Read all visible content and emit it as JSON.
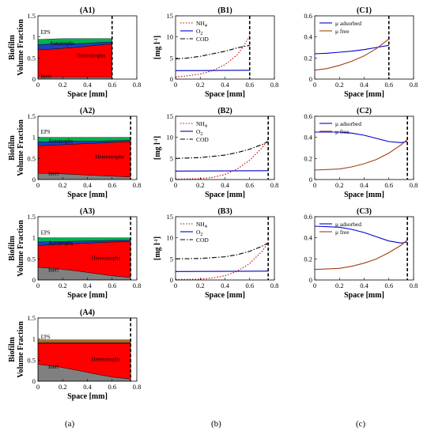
{
  "column_labels": [
    "(a)",
    "(b)",
    "(c)"
  ],
  "chart_data": [
    {
      "id": "A1",
      "type": "area",
      "title": "(A1)",
      "xlabel": "Space [mm]",
      "ylabel": [
        "Biofilm",
        "Volume Fraction"
      ],
      "xlim": [
        0,
        0.8
      ],
      "ylim": [
        0,
        1.5
      ],
      "xticks": [
        "0",
        "0.2",
        "0.4",
        "0.6",
        "0.8"
      ],
      "yticks": [
        "0",
        "0.5",
        "1",
        "1.5"
      ],
      "xticks_v": [
        0,
        0.2,
        0.4,
        0.6,
        0.8
      ],
      "yticks_v": [
        0,
        0.5,
        1,
        1.5
      ],
      "boundary": 0.6,
      "x": [
        0,
        0.1,
        0.2,
        0.3,
        0.4,
        0.5,
        0.6
      ],
      "layers": [
        {
          "name": "Inert",
          "color": "#808080",
          "values": [
            0.05,
            0.05,
            0.05,
            0.05,
            0.05,
            0.05,
            0.05
          ]
        },
        {
          "name": "Heterotrophs",
          "color": "#ff0000",
          "values": [
            0.65,
            0.66,
            0.68,
            0.7,
            0.73,
            0.76,
            0.78
          ]
        },
        {
          "name": "Autotrophs",
          "color": "#1f3fbf",
          "values": [
            0.12,
            0.12,
            0.11,
            0.09,
            0.07,
            0.06,
            0.05
          ]
        },
        {
          "name": "EPS",
          "color": "#00b050",
          "values": [
            0.12,
            0.12,
            0.12,
            0.12,
            0.11,
            0.09,
            0.08
          ]
        }
      ],
      "labels": [
        {
          "text": "EPS",
          "x": 0.01,
          "y": 1.07
        },
        {
          "text": "Autotrophs",
          "x": 0.08,
          "y": 0.81
        },
        {
          "text": "Heterotrophs",
          "x": 0.3,
          "y": 0.52
        },
        {
          "text": "Inert",
          "x": 0.01,
          "y": 0.03
        }
      ]
    },
    {
      "id": "B1",
      "type": "line",
      "title": "(B1)",
      "xlabel": "Space [mm]",
      "ylabel": "[mg l-1]",
      "xlim": [
        0,
        0.8
      ],
      "ylim": [
        0,
        15
      ],
      "xticks": [
        "0",
        "0.2",
        "0.4",
        "0.6",
        "0.8"
      ],
      "yticks": [
        "0",
        "5",
        "10",
        "15"
      ],
      "xticks_v": [
        0,
        0.2,
        0.4,
        0.6,
        0.8
      ],
      "yticks_v": [
        0,
        5,
        10,
        15
      ],
      "boundary": 0.6,
      "legend": [
        "NH4",
        "O2",
        "COD"
      ],
      "series": [
        {
          "name": "NH4",
          "color": "#c00000",
          "dash": "1.5,2",
          "x": [
            0,
            0.1,
            0.2,
            0.3,
            0.4,
            0.5,
            0.55,
            0.6
          ],
          "y": [
            0.5,
            0.8,
            1.2,
            2.0,
            3.4,
            5.8,
            7.8,
            10.2
          ]
        },
        {
          "name": "O2",
          "color": "#0000cc",
          "dash": "",
          "x": [
            0,
            0.6
          ],
          "y": [
            2.0,
            2.1
          ]
        },
        {
          "name": "COD",
          "color": "#000000",
          "dash": "6,2,1.5,2",
          "x": [
            0,
            0.1,
            0.2,
            0.3,
            0.4,
            0.5,
            0.6
          ],
          "y": [
            4.8,
            5.0,
            5.4,
            6.0,
            6.6,
            7.4,
            8.0
          ]
        }
      ]
    },
    {
      "id": "C1",
      "type": "line",
      "title": "(C1)",
      "xlabel": "Space [mm]",
      "ylabel": "",
      "xlim": [
        0,
        0.8
      ],
      "ylim": [
        0,
        0.6
      ],
      "xticks": [
        "0",
        "0.2",
        "0.4",
        "0.6",
        "0.8"
      ],
      "yticks": [
        "0",
        "0.2",
        "0.4",
        "0.6"
      ],
      "xticks_v": [
        0,
        0.2,
        0.4,
        0.6,
        0.8
      ],
      "yticks_v": [
        0,
        0.2,
        0.4,
        0.6
      ],
      "boundary": 0.6,
      "legend": [
        "μ adsorbed",
        "μ free"
      ],
      "series": [
        {
          "name": "μ adsorbed",
          "color": "#0000cc",
          "dash": "",
          "x": [
            0,
            0.1,
            0.2,
            0.3,
            0.4,
            0.5,
            0.6
          ],
          "y": [
            0.24,
            0.245,
            0.255,
            0.265,
            0.28,
            0.3,
            0.32
          ]
        },
        {
          "name": "μ free",
          "color": "#a0401a",
          "dash": "",
          "x": [
            0,
            0.1,
            0.2,
            0.3,
            0.4,
            0.5,
            0.6
          ],
          "y": [
            0.085,
            0.1,
            0.13,
            0.17,
            0.22,
            0.29,
            0.38
          ]
        }
      ]
    },
    {
      "id": "A2",
      "type": "area",
      "title": "(A2)",
      "xlabel": "Space [mm]",
      "ylabel": [
        "Biofilm",
        "Volume Fraction"
      ],
      "xlim": [
        0,
        0.8
      ],
      "ylim": [
        0,
        1.5
      ],
      "xticks": [
        "0",
        "0.2",
        "0.4",
        "0.6",
        "0.8"
      ],
      "yticks": [
        "0",
        "0.5",
        "1",
        "1.5"
      ],
      "xticks_v": [
        0,
        0.2,
        0.4,
        0.6,
        0.8
      ],
      "yticks_v": [
        0,
        0.5,
        1,
        1.5
      ],
      "boundary": 0.75,
      "x": [
        0,
        0.15,
        0.3,
        0.45,
        0.6,
        0.75
      ],
      "layers": [
        {
          "name": "Inert",
          "color": "#808080",
          "values": [
            0.15,
            0.14,
            0.12,
            0.1,
            0.08,
            0.06
          ]
        },
        {
          "name": "Heterotrophs",
          "color": "#ff0000",
          "values": [
            0.65,
            0.68,
            0.72,
            0.76,
            0.8,
            0.84
          ]
        },
        {
          "name": "Autotrophs",
          "color": "#1f3fbf",
          "values": [
            0.09,
            0.08,
            0.07,
            0.05,
            0.04,
            0.03
          ]
        },
        {
          "name": "EPS",
          "color": "#00b050",
          "values": [
            0.11,
            0.1,
            0.09,
            0.09,
            0.08,
            0.07
          ]
        }
      ],
      "labels": [
        {
          "text": "EPS",
          "x": 0.01,
          "y": 1.09
        },
        {
          "text": "Autotrophs",
          "x": 0.07,
          "y": 0.87
        },
        {
          "text": "Heterotrophs",
          "x": 0.45,
          "y": 0.5
        },
        {
          "text": "Inert",
          "x": 0.07,
          "y": 0.1
        }
      ]
    },
    {
      "id": "B2",
      "type": "line",
      "title": "(B2)",
      "xlabel": "Space [mm]",
      "ylabel": "[mg l-1]",
      "xlim": [
        0,
        0.8
      ],
      "ylim": [
        0,
        15
      ],
      "xticks": [
        "0",
        "0.2",
        "0.4",
        "0.6",
        "0.8"
      ],
      "yticks": [
        "0",
        "5",
        "10",
        "15"
      ],
      "xticks_v": [
        0,
        0.2,
        0.4,
        0.6,
        0.8
      ],
      "yticks_v": [
        0,
        5,
        10,
        15
      ],
      "boundary": 0.75,
      "legend": [
        "NH4",
        "O2",
        "COD"
      ],
      "series": [
        {
          "name": "NH4",
          "color": "#c00000",
          "dash": "1.5,2",
          "x": [
            0,
            0.2,
            0.3,
            0.4,
            0.5,
            0.6,
            0.7,
            0.75
          ],
          "y": [
            0.1,
            0.2,
            0.5,
            1.2,
            2.5,
            4.6,
            7.5,
            9.6
          ]
        },
        {
          "name": "O2",
          "color": "#0000cc",
          "dash": "",
          "x": [
            0,
            0.75
          ],
          "y": [
            2.0,
            2.1
          ]
        },
        {
          "name": "COD",
          "color": "#000000",
          "dash": "6,2,1.5,2",
          "x": [
            0,
            0.2,
            0.4,
            0.5,
            0.6,
            0.7,
            0.75
          ],
          "y": [
            5.0,
            5.2,
            5.8,
            6.4,
            7.2,
            8.3,
            9.0
          ]
        }
      ]
    },
    {
      "id": "C2",
      "type": "line",
      "title": "(C2)",
      "xlabel": "Space [mm]",
      "ylabel": "",
      "xlim": [
        0,
        0.8
      ],
      "ylim": [
        0,
        0.6
      ],
      "xticks": [
        "0",
        "0.2",
        "0.4",
        "0.6",
        "0.8"
      ],
      "yticks": [
        "0",
        "0.2",
        "0.4",
        "0.6"
      ],
      "xticks_v": [
        0,
        0.2,
        0.4,
        0.6,
        0.8
      ],
      "yticks_v": [
        0,
        0.2,
        0.4,
        0.6
      ],
      "boundary": 0.75,
      "legend": [
        "μ adsorbed",
        "μ free"
      ],
      "series": [
        {
          "name": "μ adsorbed",
          "color": "#0000cc",
          "dash": "",
          "x": [
            0,
            0.2,
            0.3,
            0.4,
            0.5,
            0.6,
            0.7,
            0.75
          ],
          "y": [
            0.45,
            0.45,
            0.44,
            0.42,
            0.39,
            0.36,
            0.35,
            0.36
          ]
        },
        {
          "name": "μ free",
          "color": "#a0401a",
          "dash": "",
          "x": [
            0,
            0.2,
            0.3,
            0.4,
            0.5,
            0.6,
            0.7,
            0.75
          ],
          "y": [
            0.09,
            0.1,
            0.12,
            0.15,
            0.19,
            0.25,
            0.33,
            0.38
          ]
        }
      ]
    },
    {
      "id": "A3",
      "type": "area",
      "title": "(A3)",
      "xlabel": "Space [mm]",
      "ylabel": [
        "Biofilm",
        "Volume Fraction"
      ],
      "xlim": [
        0,
        0.8
      ],
      "ylim": [
        0,
        1.5
      ],
      "xticks": [
        "0",
        "0.2",
        "0.4",
        "0.6",
        "0.8"
      ],
      "yticks": [
        "0",
        "0.5",
        "1",
        "1.5"
      ],
      "xticks_v": [
        0,
        0.2,
        0.4,
        0.6,
        0.8
      ],
      "yticks_v": [
        0,
        0.5,
        1,
        1.5
      ],
      "boundary": 0.75,
      "x": [
        0,
        0.15,
        0.3,
        0.45,
        0.6,
        0.75
      ],
      "layers": [
        {
          "name": "Inert",
          "color": "#808080",
          "values": [
            0.3,
            0.27,
            0.22,
            0.16,
            0.1,
            0.06
          ]
        },
        {
          "name": "Heterotrophs",
          "color": "#ff0000",
          "values": [
            0.52,
            0.57,
            0.64,
            0.72,
            0.8,
            0.85
          ]
        },
        {
          "name": "Autotrophs",
          "color": "#1f3fbf",
          "values": [
            0.08,
            0.07,
            0.06,
            0.05,
            0.04,
            0.03
          ]
        },
        {
          "name": "EPS",
          "color": "#00b050",
          "values": [
            0.1,
            0.09,
            0.08,
            0.07,
            0.06,
            0.06
          ]
        }
      ],
      "labels": [
        {
          "text": "EPS",
          "x": 0.01,
          "y": 1.08
        },
        {
          "text": "Autotrophs",
          "x": 0.07,
          "y": 0.83
        },
        {
          "text": "Heterotrophs",
          "x": 0.42,
          "y": 0.48
        },
        {
          "text": "Inert",
          "x": 0.07,
          "y": 0.2
        }
      ]
    },
    {
      "id": "B3",
      "type": "line",
      "title": "(B3)",
      "xlabel": "Space [mm]",
      "ylabel": "[mg l-1]",
      "xlim": [
        0,
        0.8
      ],
      "ylim": [
        0,
        15
      ],
      "xticks": [
        "0",
        "0.2",
        "0.4",
        "0.6",
        "0.8"
      ],
      "yticks": [
        "0",
        "5",
        "10",
        "15"
      ],
      "xticks_v": [
        0,
        0.2,
        0.4,
        0.6,
        0.8
      ],
      "yticks_v": [
        0,
        5,
        10,
        15
      ],
      "boundary": 0.75,
      "legend": [
        "NH4",
        "O2",
        "COD"
      ],
      "series": [
        {
          "name": "NH4",
          "color": "#c00000",
          "dash": "1.5,2",
          "x": [
            0,
            0.2,
            0.3,
            0.4,
            0.5,
            0.6,
            0.7,
            0.75
          ],
          "y": [
            0.1,
            0.2,
            0.5,
            1.0,
            2.1,
            3.9,
            6.8,
            8.8
          ]
        },
        {
          "name": "O2",
          "color": "#0000cc",
          "dash": "",
          "x": [
            0,
            0.75
          ],
          "y": [
            2.0,
            2.1
          ]
        },
        {
          "name": "COD",
          "color": "#000000",
          "dash": "6,2,1.5,2",
          "x": [
            0,
            0.2,
            0.4,
            0.5,
            0.6,
            0.7,
            0.75
          ],
          "y": [
            5.0,
            5.1,
            5.5,
            6.0,
            6.8,
            8.0,
            8.8
          ]
        }
      ]
    },
    {
      "id": "C3",
      "type": "line",
      "title": "(C3)",
      "xlabel": "Space [mm]",
      "ylabel": "",
      "xlim": [
        0,
        0.8
      ],
      "ylim": [
        0,
        0.6
      ],
      "xticks": [
        "0",
        "0.2",
        "0.4",
        "0.6",
        "0.8"
      ],
      "yticks": [
        "0",
        "0.2",
        "0.4",
        "0.6"
      ],
      "xticks_v": [
        0,
        0.2,
        0.4,
        0.6,
        0.8
      ],
      "yticks_v": [
        0,
        0.2,
        0.4,
        0.6
      ],
      "boundary": 0.75,
      "legend": [
        "μ adsorbed",
        "μ free"
      ],
      "series": [
        {
          "name": "μ adsorbed",
          "color": "#0000cc",
          "dash": "",
          "x": [
            0,
            0.2,
            0.3,
            0.4,
            0.5,
            0.6,
            0.7,
            0.75
          ],
          "y": [
            0.51,
            0.5,
            0.48,
            0.45,
            0.41,
            0.37,
            0.35,
            0.36
          ]
        },
        {
          "name": "μ free",
          "color": "#a0401a",
          "dash": "",
          "x": [
            0,
            0.2,
            0.3,
            0.4,
            0.5,
            0.6,
            0.7,
            0.75
          ],
          "y": [
            0.1,
            0.11,
            0.13,
            0.16,
            0.2,
            0.26,
            0.33,
            0.38
          ]
        }
      ]
    },
    {
      "id": "A4",
      "type": "area",
      "title": "(A4)",
      "xlabel": "Space [mm]",
      "ylabel": [
        "Biofilm",
        "Volume Fraction"
      ],
      "xlim": [
        0,
        0.8
      ],
      "ylim": [
        0,
        1.5
      ],
      "xticks": [
        "0",
        "0.2",
        "0.4",
        "0.6",
        "0.8"
      ],
      "yticks": [
        "0",
        "0.5",
        "1",
        "1.5"
      ],
      "xticks_v": [
        0,
        0.2,
        0.4,
        0.6,
        0.8
      ],
      "yticks_v": [
        0,
        0.5,
        1,
        1.5
      ],
      "boundary": 0.75,
      "x": [
        0,
        0.15,
        0.3,
        0.45,
        0.6,
        0.75
      ],
      "layers": [
        {
          "name": "Inert",
          "color": "#808080",
          "values": [
            0.4,
            0.35,
            0.27,
            0.18,
            0.1,
            0.05
          ]
        },
        {
          "name": "Heterotrophs",
          "color": "#ff0000",
          "values": [
            0.5,
            0.55,
            0.63,
            0.72,
            0.8,
            0.85
          ]
        },
        {
          "name": "Autotrophs",
          "color": "#1f3fbf",
          "values": [
            0.01,
            0.01,
            0.01,
            0.01,
            0.01,
            0.01
          ]
        },
        {
          "name": "EPS",
          "color": "#b5651d",
          "values": [
            0.07,
            0.07,
            0.07,
            0.07,
            0.07,
            0.07
          ]
        }
      ],
      "labels": [
        {
          "text": "EPS",
          "x": 0.01,
          "y": 1.0
        },
        {
          "text": "Heterotrophs",
          "x": 0.42,
          "y": 0.48
        },
        {
          "text": "Inert",
          "x": 0.07,
          "y": 0.3
        }
      ]
    }
  ]
}
